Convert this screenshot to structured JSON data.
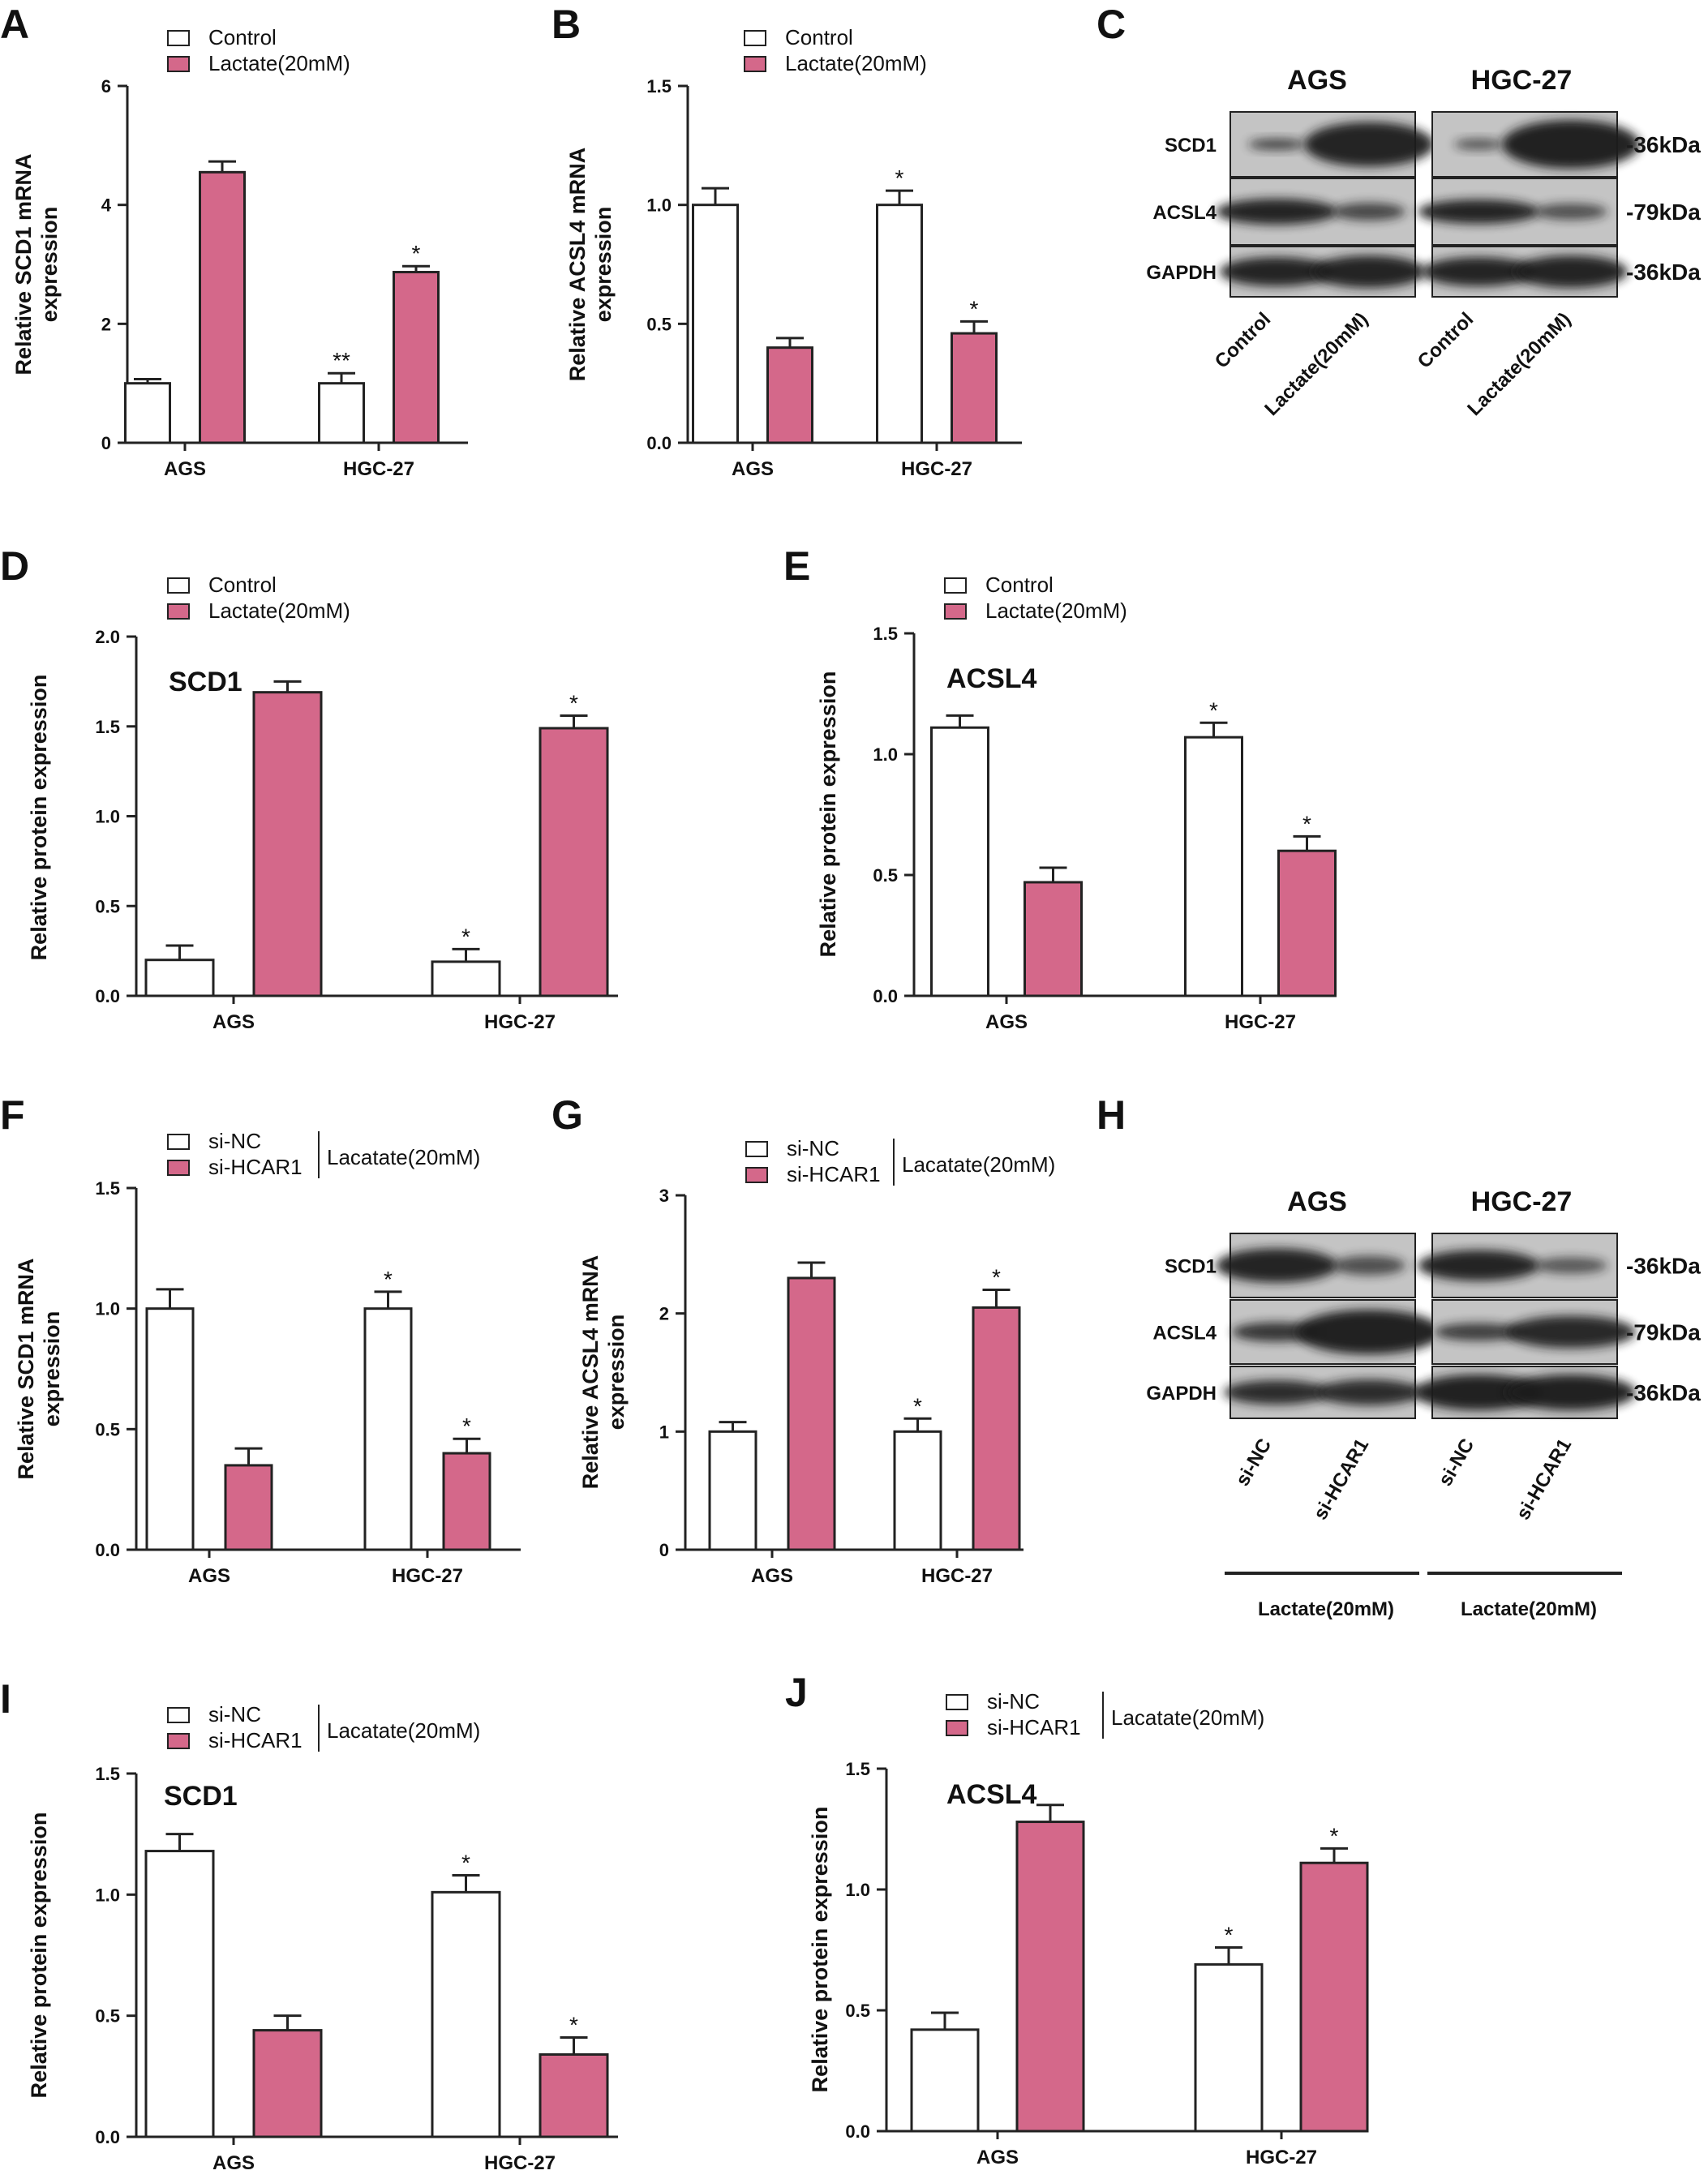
{
  "colors": {
    "pink": "#d4688a",
    "white": "#ffffff",
    "axis": "#222222",
    "text": "#111111",
    "blot_bg": "#c4c4c4",
    "band": "#1c1c1c"
  },
  "bar_charts": [
    {
      "id": "A",
      "panel_label": "A",
      "title": "",
      "ylabel_lines": [
        "Relative SCD1 mRNA",
        "expression"
      ],
      "legend": [
        "Control",
        "Lactate(20mM)"
      ],
      "legend_suffix": "",
      "categories": [
        "AGS",
        "HGC-27"
      ],
      "yticks": [
        "0",
        "2",
        "4",
        "6"
      ],
      "ylim": [
        0,
        6
      ],
      "series": [
        {
          "name": "Control",
          "values": [
            1.0,
            1.0
          ],
          "errors": [
            0.07,
            0.17
          ]
        },
        {
          "name": "Lactate(20mM)",
          "values": [
            4.55,
            2.87
          ],
          "errors": [
            0.18,
            0.1
          ]
        }
      ],
      "annotations": [
        "",
        "",
        "**",
        "*"
      ]
    },
    {
      "id": "B",
      "panel_label": "B",
      "title": "",
      "ylabel_lines": [
        "Relative ACSL4 mRNA",
        "expression"
      ],
      "legend": [
        "Control",
        "Lactate(20mM)"
      ],
      "legend_suffix": "",
      "categories": [
        "AGS",
        "HGC-27"
      ],
      "yticks": [
        "0.0",
        "0.5",
        "1.0",
        "1.5"
      ],
      "ylim": [
        0,
        1.5
      ],
      "series": [
        {
          "name": "Control",
          "values": [
            1.0,
            1.0
          ],
          "errors": [
            0.07,
            0.06
          ]
        },
        {
          "name": "Lactate(20mM)",
          "values": [
            0.4,
            0.46
          ],
          "errors": [
            0.04,
            0.05
          ]
        }
      ],
      "annotations": [
        "",
        "",
        "*",
        "*"
      ]
    },
    {
      "id": "D",
      "panel_label": "D",
      "title": "SCD1",
      "ylabel_lines": [
        "Relative protein expression"
      ],
      "legend": [
        "Control",
        "Lactate(20mM)"
      ],
      "legend_suffix": "",
      "categories": [
        "AGS",
        "HGC-27"
      ],
      "yticks": [
        "0.0",
        "0.5",
        "1.0",
        "1.5",
        "2.0"
      ],
      "ylim": [
        0,
        2.0
      ],
      "series": [
        {
          "name": "Control",
          "values": [
            0.2,
            0.19
          ],
          "errors": [
            0.08,
            0.07
          ]
        },
        {
          "name": "Lactate(20mM)",
          "values": [
            1.69,
            1.49
          ],
          "errors": [
            0.06,
            0.07
          ]
        }
      ],
      "annotations": [
        "",
        "",
        "*",
        "*"
      ]
    },
    {
      "id": "E",
      "panel_label": "E",
      "title": "ACSL4",
      "ylabel_lines": [
        "Relative protein expression"
      ],
      "legend": [
        "Control",
        "Lactate(20mM)"
      ],
      "legend_suffix": "",
      "categories": [
        "AGS",
        "HGC-27"
      ],
      "yticks": [
        "0.0",
        "0.5",
        "1.0",
        "1.5"
      ],
      "ylim": [
        0,
        1.5
      ],
      "series": [
        {
          "name": "Control",
          "values": [
            1.11,
            1.07
          ],
          "errors": [
            0.05,
            0.06
          ]
        },
        {
          "name": "Lactate(20mM)",
          "values": [
            0.47,
            0.6
          ],
          "errors": [
            0.06,
            0.06
          ]
        }
      ],
      "annotations": [
        "",
        "",
        "*",
        "*"
      ]
    },
    {
      "id": "F",
      "panel_label": "F",
      "title": "",
      "ylabel_lines": [
        "Relative SCD1 mRNA",
        "expression"
      ],
      "legend": [
        "si-NC",
        "si-HCAR1"
      ],
      "legend_suffix": "Lacatate(20mM)",
      "categories": [
        "AGS",
        "HGC-27"
      ],
      "yticks": [
        "0.0",
        "0.5",
        "1.0",
        "1.5"
      ],
      "ylim": [
        0,
        1.5
      ],
      "series": [
        {
          "name": "si-NC",
          "values": [
            1.0,
            1.0
          ],
          "errors": [
            0.08,
            0.07
          ]
        },
        {
          "name": "si-HCAR1",
          "values": [
            0.35,
            0.4
          ],
          "errors": [
            0.07,
            0.06
          ]
        }
      ],
      "annotations": [
        "",
        "",
        "*",
        "*"
      ]
    },
    {
      "id": "G",
      "panel_label": "G",
      "title": "",
      "ylabel_lines": [
        "Relative ACSL4 mRNA",
        "expression"
      ],
      "legend": [
        "si-NC",
        "si-HCAR1"
      ],
      "legend_suffix": "Lacatate(20mM)",
      "categories": [
        "AGS",
        "HGC-27"
      ],
      "yticks": [
        "0",
        "1",
        "2",
        "3"
      ],
      "ylim": [
        0,
        3
      ],
      "series": [
        {
          "name": "si-NC",
          "values": [
            1.0,
            1.0
          ],
          "errors": [
            0.08,
            0.11
          ]
        },
        {
          "name": "si-HCAR1",
          "values": [
            2.3,
            2.05
          ],
          "errors": [
            0.13,
            0.15
          ]
        }
      ],
      "annotations": [
        "",
        "",
        "*",
        "*"
      ]
    },
    {
      "id": "I",
      "panel_label": "I",
      "title": "SCD1",
      "ylabel_lines": [
        "Relative protein expression"
      ],
      "legend": [
        "si-NC",
        "si-HCAR1"
      ],
      "legend_suffix": "Lacatate(20mM)",
      "categories": [
        "AGS",
        "HGC-27"
      ],
      "yticks": [
        "0.0",
        "0.5",
        "1.0",
        "1.5"
      ],
      "ylim": [
        0,
        1.5
      ],
      "series": [
        {
          "name": "si-NC",
          "values": [
            1.18,
            1.01
          ],
          "errors": [
            0.07,
            0.07
          ]
        },
        {
          "name": "si-HCAR1",
          "values": [
            0.44,
            0.34
          ],
          "errors": [
            0.06,
            0.07
          ]
        }
      ],
      "annotations": [
        "",
        "",
        "*",
        "*"
      ]
    },
    {
      "id": "J",
      "panel_label": "J",
      "title": "ACSL4",
      "ylabel_lines": [
        "Relative protein expression"
      ],
      "legend": [
        "si-NC",
        "si-HCAR1"
      ],
      "legend_suffix": "Lacatate(20mM)",
      "categories": [
        "AGS",
        "HGC-27"
      ],
      "yticks": [
        "0.0",
        "0.5",
        "1.0",
        "1.5"
      ],
      "ylim": [
        0,
        1.5
      ],
      "series": [
        {
          "name": "si-NC",
          "values": [
            0.42,
            0.69
          ],
          "errors": [
            0.07,
            0.07
          ]
        },
        {
          "name": "si-HCAR1",
          "values": [
            1.28,
            1.11
          ],
          "errors": [
            0.07,
            0.06
          ]
        }
      ],
      "annotations": [
        "",
        "",
        "*",
        "*"
      ]
    }
  ],
  "blots": [
    {
      "id": "C",
      "panel_label": "C",
      "groups": [
        "AGS",
        "HGC-27"
      ],
      "rows": [
        "SCD1",
        "ACSL4",
        "GAPDH"
      ],
      "sizes": [
        "-36kDa",
        "-79kDa",
        "-36kDa"
      ],
      "lanes": [
        "Control",
        "Lactate(20mM)",
        "Control",
        "Lactate(20mM)"
      ],
      "bottom_labels": []
    },
    {
      "id": "H",
      "panel_label": "H",
      "groups": [
        "AGS",
        "HGC-27"
      ],
      "rows": [
        "SCD1",
        "ACSL4",
        "GAPDH"
      ],
      "sizes": [
        "-36kDa",
        "-79kDa",
        "-36kDa"
      ],
      "lanes": [
        "si-NC",
        "si-HCAR1",
        "si-NC",
        "si-HCAR1"
      ],
      "bottom_labels": [
        "Lactate(20mM)",
        "Lactate(20mM)"
      ]
    }
  ],
  "chart_data": [
    {
      "type": "bar",
      "panel": "A",
      "categories": [
        "AGS",
        "HGC-27"
      ],
      "ylabel": "Relative SCD1 mRNA expression",
      "ylim": [
        0,
        6
      ],
      "series": [
        {
          "name": "Control",
          "values": [
            1.0,
            1.0
          ]
        },
        {
          "name": "Lactate(20mM)",
          "values": [
            4.55,
            2.87
          ]
        }
      ]
    },
    {
      "type": "bar",
      "panel": "B",
      "categories": [
        "AGS",
        "HGC-27"
      ],
      "ylabel": "Relative ACSL4 mRNA expression",
      "ylim": [
        0,
        1.5
      ],
      "series": [
        {
          "name": "Control",
          "values": [
            1.0,
            1.0
          ]
        },
        {
          "name": "Lactate(20mM)",
          "values": [
            0.4,
            0.46
          ]
        }
      ]
    },
    {
      "type": "bar",
      "panel": "D",
      "title": "SCD1",
      "categories": [
        "AGS",
        "HGC-27"
      ],
      "ylabel": "Relative protein expression",
      "ylim": [
        0,
        2.0
      ],
      "series": [
        {
          "name": "Control",
          "values": [
            0.2,
            0.19
          ]
        },
        {
          "name": "Lactate(20mM)",
          "values": [
            1.69,
            1.49
          ]
        }
      ]
    },
    {
      "type": "bar",
      "panel": "E",
      "title": "ACSL4",
      "categories": [
        "AGS",
        "HGC-27"
      ],
      "ylabel": "Relative protein expression",
      "ylim": [
        0,
        1.5
      ],
      "series": [
        {
          "name": "Control",
          "values": [
            1.11,
            1.07
          ]
        },
        {
          "name": "Lactate(20mM)",
          "values": [
            0.47,
            0.6
          ]
        }
      ]
    },
    {
      "type": "bar",
      "panel": "F",
      "categories": [
        "AGS",
        "HGC-27"
      ],
      "ylabel": "Relative SCD1 mRNA expression",
      "ylim": [
        0,
        1.5
      ],
      "series": [
        {
          "name": "si-NC",
          "values": [
            1.0,
            1.0
          ]
        },
        {
          "name": "si-HCAR1",
          "values": [
            0.35,
            0.4
          ]
        }
      ]
    },
    {
      "type": "bar",
      "panel": "G",
      "categories": [
        "AGS",
        "HGC-27"
      ],
      "ylabel": "Relative ACSL4 mRNA expression",
      "ylim": [
        0,
        3
      ],
      "series": [
        {
          "name": "si-NC",
          "values": [
            1.0,
            1.0
          ]
        },
        {
          "name": "si-HCAR1",
          "values": [
            2.3,
            2.05
          ]
        }
      ]
    },
    {
      "type": "bar",
      "panel": "I",
      "title": "SCD1",
      "categories": [
        "AGS",
        "HGC-27"
      ],
      "ylabel": "Relative protein expression",
      "ylim": [
        0,
        1.5
      ],
      "series": [
        {
          "name": "si-NC",
          "values": [
            1.18,
            1.01
          ]
        },
        {
          "name": "si-HCAR1",
          "values": [
            0.44,
            0.34
          ]
        }
      ]
    },
    {
      "type": "bar",
      "panel": "J",
      "title": "ACSL4",
      "categories": [
        "AGS",
        "HGC-27"
      ],
      "ylabel": "Relative protein expression",
      "ylim": [
        0,
        1.5
      ],
      "series": [
        {
          "name": "si-NC",
          "values": [
            0.42,
            0.69
          ]
        },
        {
          "name": "si-HCAR1",
          "values": [
            1.28,
            1.11
          ]
        }
      ]
    }
  ]
}
